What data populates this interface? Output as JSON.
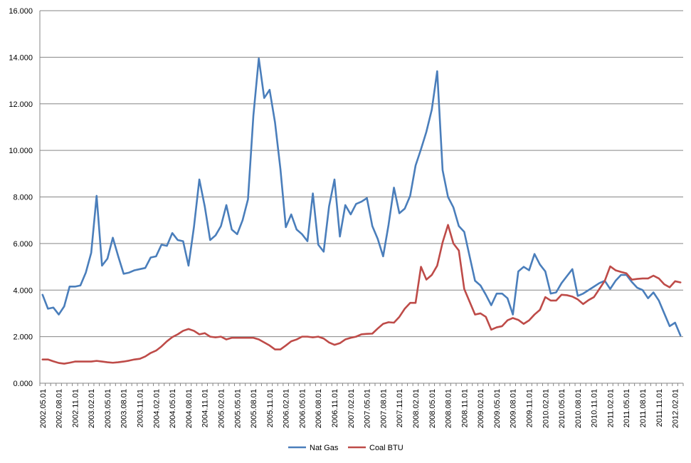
{
  "chart_data": {
    "type": "line",
    "title": "",
    "xlabel": "",
    "ylabel": "",
    "ylim": [
      0,
      16
    ],
    "y_ticks": [
      "0.000",
      "2.000",
      "4.000",
      "6.000",
      "8.000",
      "10.000",
      "12.000",
      "14.000",
      "16.000"
    ],
    "x_tick_labels": [
      "2002.05.01",
      "2002.08.01",
      "2002.11.01",
      "2003.02.01",
      "2003.05.01",
      "2003.08.01",
      "2003.11.01",
      "2004.02.01",
      "2004.05.01",
      "2004.08.01",
      "2004.11.01",
      "2005.02.01",
      "2005.05.01",
      "2005.08.01",
      "2005.11.01",
      "2006.02.01",
      "2006.05.01",
      "2006.08.01",
      "2006.11.01",
      "2007.02.01",
      "2007.05.01",
      "2007.08.01",
      "2007.11.01",
      "2008.02.01",
      "2008.05.01",
      "2008.08.01",
      "2008.11.01",
      "2009.02.01",
      "2009.05.01",
      "2009.08.01",
      "2009.11.01",
      "2010.02.01",
      "2010.05.01",
      "2010.08.01",
      "2010.11.01",
      "2011.02.01",
      "2011.05.01",
      "2011.08.01",
      "2011.11.01",
      "2012.02.01"
    ],
    "x_start": "2002.05.01",
    "grid": true,
    "legend_position": "bottom",
    "series": [
      {
        "name": "Nat Gas",
        "color": "#4a7ebb",
        "values": [
          3.8,
          3.2,
          3.25,
          2.95,
          3.3,
          4.15,
          4.15,
          4.2,
          4.75,
          5.6,
          8.05,
          5.05,
          5.35,
          6.25,
          5.45,
          4.7,
          4.75,
          4.85,
          4.9,
          4.95,
          5.4,
          5.45,
          5.95,
          5.9,
          6.45,
          6.15,
          6.1,
          5.05,
          6.7,
          8.75,
          7.6,
          6.15,
          6.35,
          6.75,
          7.65,
          6.6,
          6.4,
          7.0,
          7.9,
          11.5,
          13.95,
          12.25,
          12.6,
          11.2,
          9.2,
          6.7,
          7.25,
          6.6,
          6.4,
          6.1,
          8.15,
          5.95,
          5.65,
          7.6,
          8.75,
          6.3,
          7.65,
          7.25,
          7.7,
          7.8,
          7.95,
          6.75,
          6.2,
          5.45,
          6.8,
          8.4,
          7.3,
          7.5,
          8.05,
          9.35,
          10.05,
          10.8,
          11.75,
          13.4,
          9.15,
          8.0,
          7.55,
          6.75,
          6.5,
          5.45,
          4.4,
          4.2,
          3.8,
          3.35,
          3.85,
          3.85,
          3.65,
          2.95,
          4.8,
          5.0,
          4.85,
          5.55,
          5.1,
          4.8,
          3.85,
          3.9,
          4.3,
          4.6,
          4.9,
          3.75,
          3.85,
          4.0,
          4.15,
          4.3,
          4.4,
          4.05,
          4.4,
          4.65,
          4.65,
          4.35,
          4.1,
          4.0,
          3.65,
          3.9,
          3.55,
          3.0,
          2.45,
          2.6,
          2.05
        ]
      },
      {
        "name": "Coal BTU",
        "color": "#be4b48",
        "values": [
          1.02,
          1.02,
          0.94,
          0.87,
          0.84,
          0.88,
          0.93,
          0.93,
          0.93,
          0.93,
          0.96,
          0.93,
          0.9,
          0.88,
          0.9,
          0.93,
          0.97,
          1.02,
          1.05,
          1.15,
          1.3,
          1.4,
          1.58,
          1.8,
          1.98,
          2.1,
          2.25,
          2.33,
          2.25,
          2.1,
          2.15,
          2.0,
          1.97,
          2.0,
          1.88,
          1.95,
          1.95,
          1.95,
          1.95,
          1.95,
          1.88,
          1.75,
          1.62,
          1.45,
          1.45,
          1.62,
          1.8,
          1.88,
          2.0,
          2.0,
          1.97,
          2.0,
          1.92,
          1.75,
          1.65,
          1.72,
          1.88,
          1.95,
          2.0,
          2.1,
          2.12,
          2.13,
          2.35,
          2.55,
          2.62,
          2.6,
          2.85,
          3.2,
          3.45,
          3.45,
          5.0,
          4.45,
          4.65,
          5.05,
          6.05,
          6.8,
          6.0,
          5.7,
          4.05,
          3.5,
          2.95,
          3.0,
          2.85,
          2.3,
          2.4,
          2.45,
          2.7,
          2.8,
          2.72,
          2.55,
          2.7,
          2.95,
          3.15,
          3.7,
          3.55,
          3.55,
          3.8,
          3.78,
          3.72,
          3.6,
          3.4,
          3.57,
          3.7,
          4.05,
          4.4,
          5.02,
          4.85,
          4.78,
          4.72,
          4.45,
          4.48,
          4.5,
          4.5,
          4.62,
          4.5,
          4.25,
          4.12,
          4.38,
          4.33
        ]
      }
    ]
  }
}
